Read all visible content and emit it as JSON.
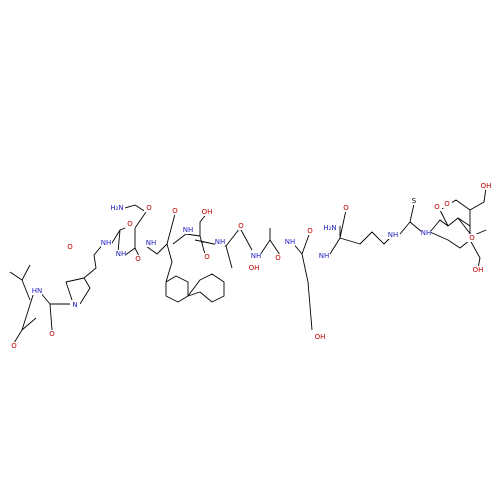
{
  "atoms": [
    "O",
    "HN",
    "O",
    "N",
    "O",
    "NH",
    "O",
    "NH",
    "H₂N",
    "O",
    "O",
    "NH",
    "O",
    "OH",
    "NH",
    "O",
    "NH",
    "O",
    "OH",
    "NH",
    "O",
    "NH",
    "O",
    "OH",
    "NH",
    "H₂N",
    "O",
    "NH",
    "S",
    "NH",
    "O",
    "O",
    "O",
    "OH",
    "OH"
  ]
}
